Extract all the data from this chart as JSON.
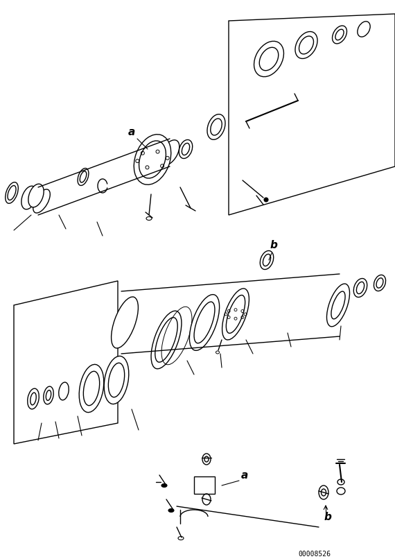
{
  "figure_width": 5.7,
  "figure_height": 8.06,
  "dpi": 100,
  "bg_color": "#ffffff",
  "line_color": "#000000",
  "part_id": "00008526",
  "label_a1": "a",
  "label_b1": "b",
  "label_a2": "a",
  "label_b2": "b"
}
